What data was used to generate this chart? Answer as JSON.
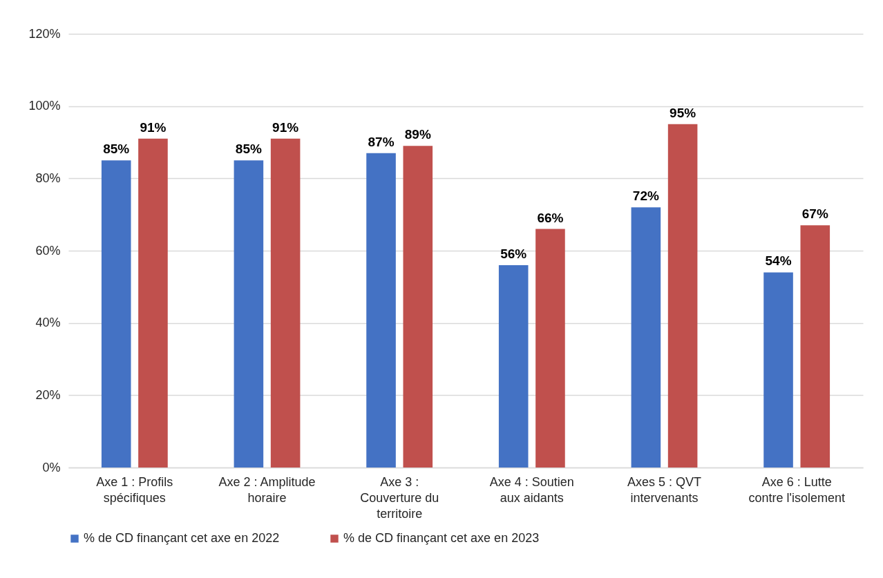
{
  "chart_data": {
    "type": "bar",
    "categories": [
      "Axe 1 : Profils\nspécifiques",
      "Axe 2 : Amplitude\nhoraire",
      "Axe 3 :\nCouverture du\nterritoire",
      "Axe 4 : Soutien\naux aidants",
      "Axes 5 : QVT\nintervenants",
      "Axe 6 : Lutte\ncontre l'isolement"
    ],
    "series": [
      {
        "name": "% de CD finançant cet axe en 2022",
        "color": "#4472c4",
        "values": [
          85,
          85,
          87,
          56,
          72,
          54
        ],
        "value_labels": [
          "85%",
          "85%",
          "87%",
          "56%",
          "72%",
          "54%"
        ]
      },
      {
        "name": "% de CD finançant cet axe en 2023",
        "color": "#c0504d",
        "values": [
          91,
          91,
          89,
          66,
          95,
          67
        ],
        "value_labels": [
          "91%",
          "91%",
          "89%",
          "66%",
          "95%",
          "67%"
        ]
      }
    ],
    "ylim": [
      0,
      120
    ],
    "yticks": [
      {
        "value": 0,
        "label": "0%"
      },
      {
        "value": 20,
        "label": "20%"
      },
      {
        "value": 40,
        "label": "40%"
      },
      {
        "value": 60,
        "label": "60%"
      },
      {
        "value": 80,
        "label": "80%"
      },
      {
        "value": 100,
        "label": "100%"
      },
      {
        "value": 120,
        "label": "120%"
      }
    ],
    "grid": "y",
    "legend": "bottom"
  }
}
